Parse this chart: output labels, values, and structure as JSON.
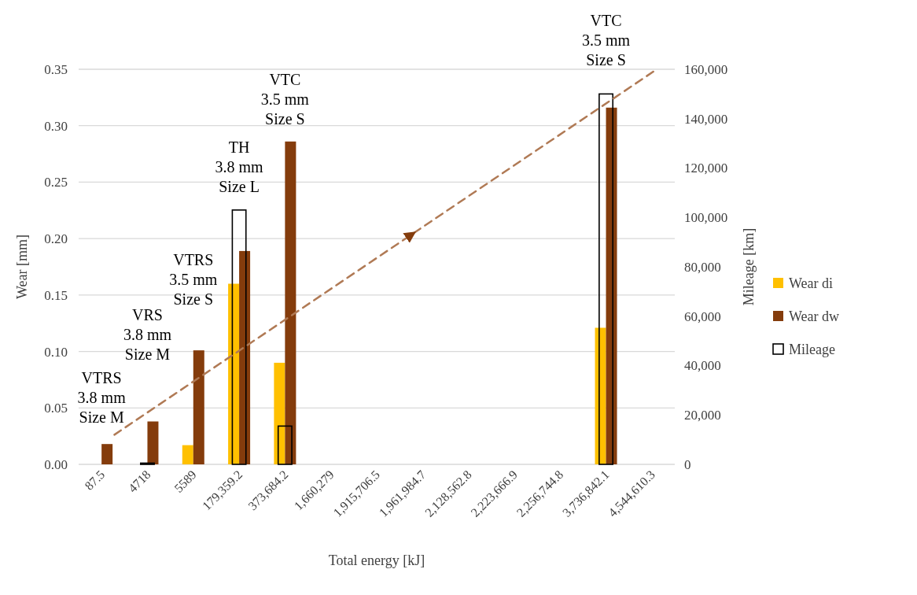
{
  "chart_data": {
    "type": "bar",
    "xlabel": "Total energy [kJ]",
    "ylabel": "Wear [mm]",
    "y2label": "Mileage [km]",
    "categories": [
      "87.5",
      "4718",
      "5589",
      "179,359.2",
      "373,684.2",
      "1,660,279",
      "1,915,706.5",
      "1,961,984.7",
      "2,128,562.8",
      "2,223,666.9",
      "2,256,744.8",
      "3,736,842.1",
      "4,544,610.3"
    ],
    "series": [
      {
        "name": "Wear di",
        "color": "#ffc000",
        "values": [
          null,
          null,
          0.017,
          0.16,
          0.09,
          null,
          null,
          null,
          null,
          null,
          null,
          0.121,
          null
        ]
      },
      {
        "name": "Wear dw",
        "color": "#843c0c",
        "values": [
          0.018,
          0.038,
          0.101,
          0.189,
          0.286,
          null,
          null,
          null,
          null,
          null,
          null,
          0.316,
          null
        ]
      },
      {
        "name": "Mileage",
        "color": "#000000",
        "axis": "y2",
        "values": [
          null,
          500,
          null,
          103000,
          15500,
          null,
          null,
          null,
          null,
          null,
          null,
          150000,
          null
        ]
      }
    ],
    "ylim": [
      0,
      0.35
    ],
    "yticks": [
      {
        "value": 0,
        "label": "0.00"
      },
      {
        "value": 0.05,
        "label": "0.05"
      },
      {
        "value": 0.1,
        "label": "0.10"
      },
      {
        "value": 0.15,
        "label": "0.15"
      },
      {
        "value": 0.2,
        "label": "0.20"
      },
      {
        "value": 0.25,
        "label": "0.25"
      },
      {
        "value": 0.3,
        "label": "0.30"
      },
      {
        "value": 0.35,
        "label": "0.35"
      }
    ],
    "y2lim": [
      0,
      160000
    ],
    "y2ticks": [
      0,
      {
        "value": 20000,
        "label": "20,000"
      },
      {
        "value": 40000,
        "label": "40,000"
      },
      {
        "value": 60000,
        "label": "60,000"
      },
      {
        "value": 80000,
        "label": "80,000"
      },
      {
        "value": 100000,
        "label": "100,000"
      },
      {
        "value": 120000,
        "label": "120,000"
      },
      {
        "value": 140000,
        "label": "140,000"
      },
      {
        "value": 160000,
        "label": "160,000"
      }
    ],
    "grid": "y",
    "legend": "right",
    "annotations": [
      "VTRS\n3.8 mm\nSize M",
      "VRS\n3.8 mm\nSize M",
      "VTRS\n3.5 mm\nSize S",
      "TH\n3.8 mm\nSize L",
      "VTC\n3.5 mm\nSize S",
      "VTC\n3.5 mm\nSize S"
    ]
  }
}
